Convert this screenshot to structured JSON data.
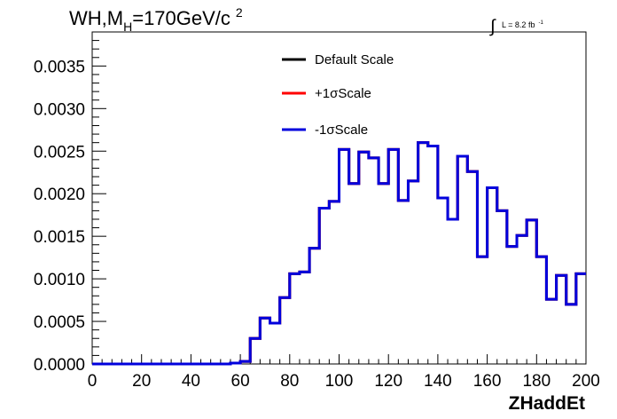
{
  "chart_data": {
    "type": "line",
    "style": "step-histogram",
    "title": "WH,M",
    "title_subscript": "H",
    "title_rest": "=170GeV/c",
    "title_superscript": "2",
    "lumi_symbol": "∫",
    "lumi_label": "L = 8.2 fb",
    "lumi_superscript": "-1",
    "xlabel": "ZHaddEt",
    "ylabel": "",
    "xlim": [
      0,
      200
    ],
    "ylim": [
      0,
      0.0039
    ],
    "x_ticks": [
      "0",
      "20",
      "40",
      "60",
      "80",
      "100",
      "120",
      "140",
      "160",
      "180",
      "200"
    ],
    "x_tick_values": [
      0,
      20,
      40,
      60,
      80,
      100,
      120,
      140,
      160,
      180,
      200
    ],
    "y_ticks": [
      "0.0000",
      "0.0005",
      "0.0010",
      "0.0015",
      "0.0020",
      "0.0025",
      "0.0030",
      "0.0035"
    ],
    "y_tick_values": [
      0,
      0.0005,
      0.001,
      0.0015,
      0.002,
      0.0025,
      0.003,
      0.0035
    ],
    "legend_position": "top-right",
    "bin_edges": [
      0,
      4,
      8,
      12,
      16,
      20,
      24,
      28,
      32,
      36,
      40,
      44,
      48,
      52,
      56,
      60,
      64,
      68,
      72,
      76,
      80,
      84,
      88,
      92,
      96,
      100,
      104,
      108,
      112,
      116,
      120,
      124,
      128,
      132,
      136,
      140,
      144,
      148,
      152,
      156,
      160,
      164,
      168,
      172,
      176,
      180,
      184,
      188,
      192,
      196,
      200
    ],
    "series": [
      {
        "name": "Default Scale",
        "color": "#000000",
        "values": [
          0,
          0,
          0,
          0,
          0,
          0,
          0,
          0,
          0,
          0,
          0,
          0,
          0,
          0,
          1e-05,
          3e-05,
          0.0003,
          0.00054,
          0.00048,
          0.00078,
          0.00106,
          0.00108,
          0.00136,
          0.00183,
          0.00191,
          0.00252,
          0.00212,
          0.00249,
          0.00242,
          0.00212,
          0.00252,
          0.00192,
          0.00215,
          0.0026,
          0.00256,
          0.00195,
          0.0017,
          0.00244,
          0.00226,
          0.00126,
          0.00207,
          0.0018,
          0.00138,
          0.00151,
          0.00169,
          0.00126,
          0.00076,
          0.00104,
          0.0007,
          0.00106
        ]
      },
      {
        "name": "+1σScale",
        "color": "#ff0000",
        "values": [
          0,
          0,
          0,
          0,
          0,
          0,
          0,
          0,
          0,
          0,
          0,
          0,
          0,
          0,
          1e-05,
          3e-05,
          0.0003,
          0.00054,
          0.00048,
          0.00078,
          0.00106,
          0.00108,
          0.00136,
          0.00183,
          0.00191,
          0.00252,
          0.00212,
          0.00249,
          0.00242,
          0.00212,
          0.00252,
          0.00192,
          0.00215,
          0.0026,
          0.00256,
          0.00195,
          0.0017,
          0.00244,
          0.00226,
          0.00126,
          0.00207,
          0.0018,
          0.00138,
          0.00151,
          0.00169,
          0.00126,
          0.00076,
          0.00104,
          0.0007,
          0.00106
        ]
      },
      {
        "name": "-1σScale",
        "color": "#0000dd",
        "values": [
          0,
          0,
          0,
          0,
          0,
          0,
          0,
          0,
          0,
          0,
          0,
          0,
          0,
          0,
          1e-05,
          3e-05,
          0.0003,
          0.00054,
          0.00048,
          0.00078,
          0.00106,
          0.00108,
          0.00136,
          0.00183,
          0.00191,
          0.00252,
          0.00212,
          0.00249,
          0.00242,
          0.00212,
          0.00252,
          0.00192,
          0.00215,
          0.0026,
          0.00256,
          0.00195,
          0.0017,
          0.00244,
          0.00226,
          0.00126,
          0.00207,
          0.0018,
          0.00138,
          0.00151,
          0.00169,
          0.00126,
          0.00076,
          0.00104,
          0.0007,
          0.00106
        ]
      }
    ]
  }
}
